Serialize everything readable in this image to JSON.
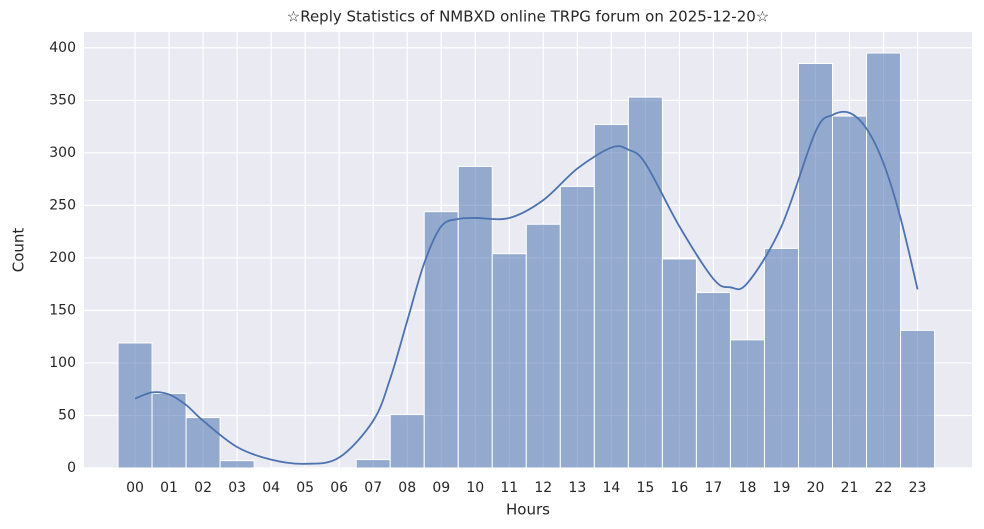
{
  "chart_data": {
    "type": "histogram",
    "title": "☆Reply Statistics of NMBXD online TRPG forum on 2025-12-20☆",
    "x_label": "Hours",
    "y_label": "Count",
    "categories": [
      "00",
      "01",
      "02",
      "03",
      "04",
      "05",
      "06",
      "07",
      "08",
      "09",
      "10",
      "11",
      "12",
      "13",
      "14",
      "15",
      "16",
      "17",
      "18",
      "19",
      "20",
      "21",
      "22",
      "23"
    ],
    "values": [
      119,
      71,
      48,
      7,
      0,
      0,
      0,
      8,
      51,
      244,
      287,
      204,
      232,
      268,
      327,
      353,
      199,
      167,
      122,
      209,
      385,
      335,
      395,
      131
    ],
    "color": "#4c72b0",
    "kde": {
      "x": [
        0,
        0.5,
        1,
        1.5,
        2,
        3,
        4,
        5,
        6,
        7,
        7.5,
        8,
        8.5,
        9,
        9.5,
        10,
        11,
        12,
        13,
        14,
        14.5,
        15,
        16,
        17,
        17.5,
        18,
        19,
        20,
        20.5,
        21,
        21.5,
        22,
        22.5,
        23
      ],
      "values": [
        66,
        72,
        70,
        60,
        45,
        20,
        8,
        4,
        10,
        45,
        85,
        140,
        195,
        230,
        237,
        238,
        238,
        255,
        285,
        305,
        303,
        290,
        230,
        180,
        172,
        176,
        230,
        320,
        336,
        338,
        323,
        290,
        238,
        170
      ],
      "color": "#4c72b0"
    },
    "xlim": [
      -1.5,
      24.6
    ],
    "ylim": [
      0,
      415
    ],
    "yticks": [
      0,
      50,
      100,
      150,
      200,
      250,
      300,
      350,
      400
    ],
    "grid": true
  }
}
